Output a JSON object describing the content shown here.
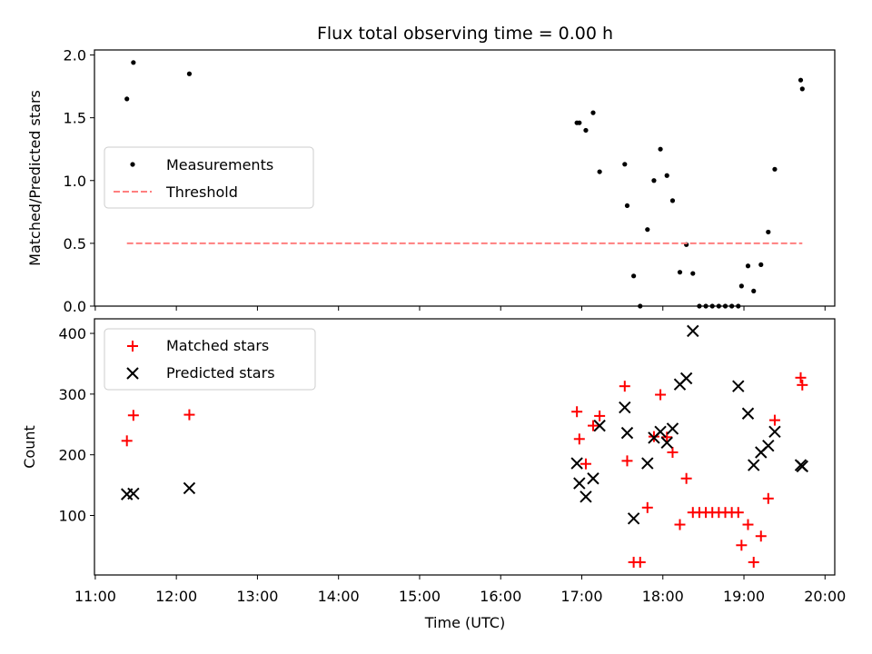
{
  "chart_data": {
    "title": "Flux total observing time = 0.00 h",
    "xlabel": "Time (UTC)",
    "x_tick_labels": [
      "11:00",
      "12:00",
      "13:00",
      "14:00",
      "15:00",
      "16:00",
      "17:00",
      "18:00",
      "19:00",
      "20:00"
    ],
    "x_ticks_hours": [
      11,
      12,
      13,
      14,
      15,
      16,
      17,
      18,
      19,
      20
    ],
    "xlim": [
      10.99,
      20.12
    ],
    "panels": [
      {
        "type": "scatter",
        "ylabel": "Matched/Predicted stars",
        "ylim": [
          0,
          2.04
        ],
        "y_ticks": [
          "0.0",
          "0.5",
          "1.0",
          "1.5",
          "2.0"
        ],
        "y_tick_values": [
          0,
          0.5,
          1.0,
          1.5,
          2.0
        ],
        "legend_position": "center-left",
        "series": [
          {
            "name": "Measurements",
            "marker": "dot",
            "color": "#000000",
            "x": [
              11.39,
              11.47,
              12.16,
              16.94,
              16.97,
              17.05,
              17.14,
              17.22,
              17.53,
              17.56,
              17.64,
              17.72,
              17.81,
              17.89,
              17.97,
              18.05,
              18.12,
              18.21,
              18.29,
              18.37,
              18.45,
              18.53,
              18.61,
              18.69,
              18.77,
              18.85,
              18.93,
              18.97,
              19.05,
              19.12,
              19.21,
              19.3,
              19.38,
              19.7,
              19.72
            ],
            "y": [
              1.65,
              1.94,
              1.85,
              1.46,
              1.46,
              1.4,
              1.54,
              1.07,
              1.13,
              0.8,
              0.24,
              0.0,
              0.61,
              1.0,
              1.25,
              1.04,
              0.84,
              0.27,
              0.49,
              0.26,
              0.0,
              0.0,
              0.0,
              0.0,
              0.0,
              0.0,
              0.0,
              0.16,
              0.32,
              0.12,
              0.33,
              0.59,
              1.09,
              1.8,
              1.73
            ]
          },
          {
            "name": "Threshold",
            "line": "dashed",
            "color": "#ff7f7f",
            "x": [
              11.39,
              19.72
            ],
            "y": [
              0.5,
              0.5
            ]
          }
        ]
      },
      {
        "type": "scatter",
        "ylabel": "Count",
        "ylim": [
          2,
          424
        ],
        "y_ticks": [
          "100",
          "200",
          "300",
          "400"
        ],
        "y_tick_values": [
          100,
          200,
          300,
          400
        ],
        "legend_position": "top-left",
        "series": [
          {
            "name": "Matched stars",
            "marker": "plus",
            "color": "#ff0000",
            "x": [
              11.39,
              11.47,
              12.16,
              16.94,
              16.97,
              17.05,
              17.14,
              17.22,
              17.53,
              17.56,
              17.64,
              17.72,
              17.81,
              17.89,
              17.97,
              18.05,
              18.12,
              18.21,
              18.29,
              18.37,
              18.45,
              18.53,
              18.61,
              18.69,
              18.77,
              18.85,
              18.93,
              18.97,
              19.05,
              19.12,
              19.21,
              19.3,
              19.38,
              19.7,
              19.72
            ],
            "y": [
              223,
              265,
              266,
              271,
              226,
              185,
              248,
              264,
              313,
              190,
              23,
              23,
              113,
              230,
              299,
              229,
              204,
              85,
              161,
              105,
              105,
              105,
              105,
              105,
              105,
              105,
              105,
              51,
              85,
              23,
              66,
              128,
              257,
              327,
              315
            ]
          },
          {
            "name": "Predicted stars",
            "marker": "x",
            "color": "#000000",
            "x": [
              11.39,
              11.47,
              12.16,
              16.94,
              16.97,
              17.05,
              17.14,
              17.22,
              17.53,
              17.56,
              17.64,
              17.81,
              17.89,
              17.97,
              18.05,
              18.12,
              18.21,
              18.29,
              18.37,
              18.93,
              19.05,
              19.12,
              19.21,
              19.3,
              19.38,
              19.7,
              19.72
            ],
            "y": [
              135,
              136,
              145,
              186,
              153,
              131,
              161,
              248,
              278,
              236,
              95,
              186,
              228,
              238,
              220,
              243,
              316,
              326,
              404,
              313,
              268,
              183,
              204,
              215,
              238,
              183,
              181
            ]
          }
        ]
      }
    ]
  }
}
